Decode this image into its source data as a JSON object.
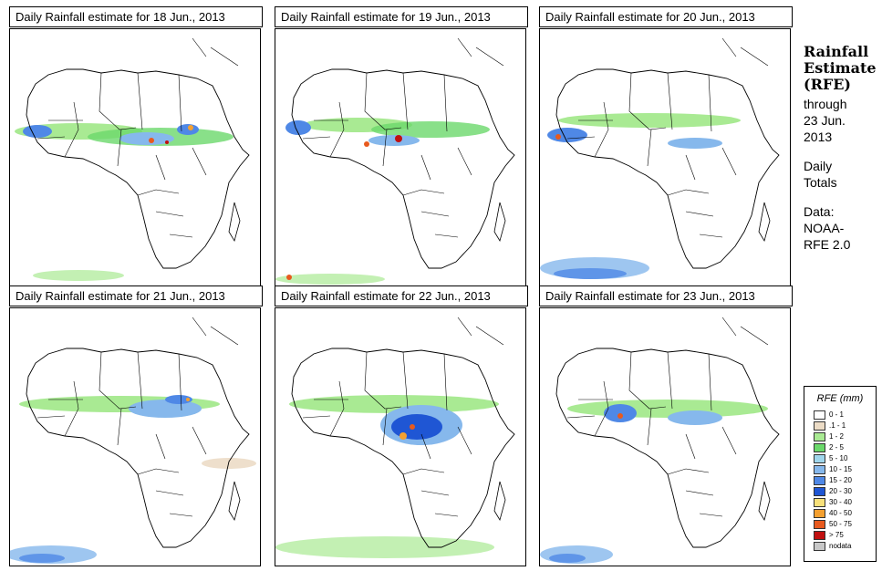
{
  "panels": [
    {
      "title": "Daily Rainfall estimate for  18 Jun., 2013"
    },
    {
      "title": "Daily Rainfall estimate for  19 Jun., 2013"
    },
    {
      "title": "Daily Rainfall estimate for  20 Jun., 2013"
    },
    {
      "title": "Daily Rainfall estimate for  21 Jun., 2013"
    },
    {
      "title": "Daily Rainfall estimate for  22 Jun., 2013"
    },
    {
      "title": "Daily Rainfall estimate for  23 Jun., 2013"
    }
  ],
  "side": {
    "title_line1": "Rainfall",
    "title_line2": "Estimate",
    "title_line3": "(RFE)",
    "through": "through",
    "date_line1": "23 Jun.",
    "date_line2": "2013",
    "daily": "Daily",
    "totals": "Totals",
    "data_label": "Data:",
    "source_line1": "NOAA-",
    "source_line2": "RFE 2.0"
  },
  "legend": {
    "title": "RFE (mm)",
    "items": [
      {
        "label": "0 - 1",
        "color": "#ffffff"
      },
      {
        "label": ".1 - 1",
        "color": "#ecdcc6"
      },
      {
        "label": "1 - 2",
        "color": "#a9ea93"
      },
      {
        "label": "2 - 5",
        "color": "#6bd86b"
      },
      {
        "label": "5 - 10",
        "color": "#9fd6ec"
      },
      {
        "label": "10 - 15",
        "color": "#86b8ec"
      },
      {
        "label": "15 - 20",
        "color": "#4f88e6"
      },
      {
        "label": "20 - 30",
        "color": "#1f56d4"
      },
      {
        "label": "30 - 40",
        "color": "#f7e07a"
      },
      {
        "label": "40 - 50",
        "color": "#f4a030"
      },
      {
        "label": "50 - 75",
        "color": "#e85a1e"
      },
      {
        "label": "> 75",
        "color": "#c01010"
      },
      {
        "label": "nodata",
        "color": "#c8c8c8"
      }
    ]
  }
}
